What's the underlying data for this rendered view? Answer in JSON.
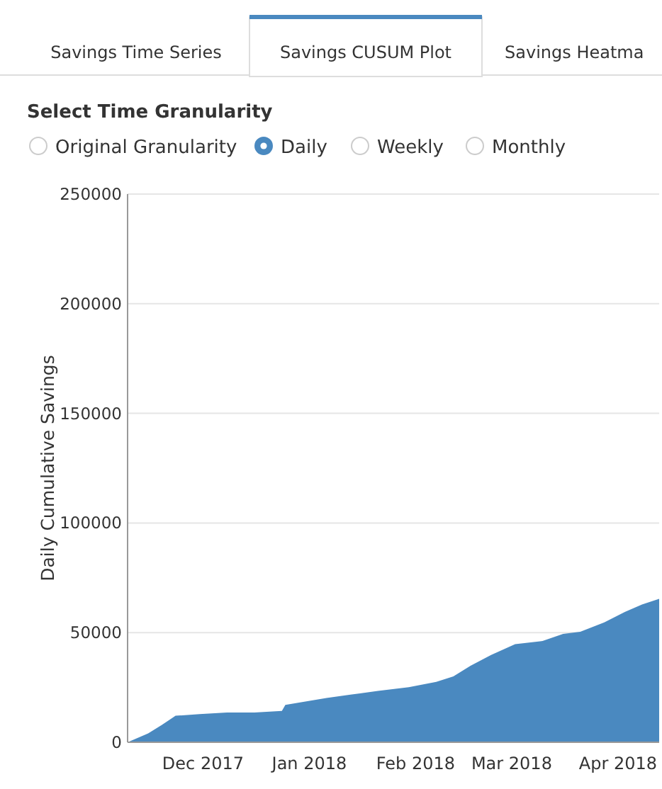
{
  "chart_data": {
    "type": "area",
    "title": "Select Time Granularity",
    "annotations": [
      "Savings Time Series",
      "Savings CUSUM Plot",
      "Savings Heatma",
      "Original Granularity",
      "Daily",
      "Weekly",
      "Monthly"
    ],
    "ylabel": "Daily Cumulative Savings",
    "color": "#4a89c0",
    "grid": "y",
    "x": [
      "2017-11-09",
      "2017-11-15",
      "2017-11-19",
      "2017-11-23",
      "2017-11-30",
      "2017-12-08",
      "2017-12-16",
      "2017-12-24",
      "2017-12-25",
      "2018-01-06",
      "2018-01-13",
      "2018-01-21",
      "2018-01-30",
      "2018-02-07",
      "2018-02-12",
      "2018-02-17",
      "2018-02-23",
      "2018-03-02",
      "2018-03-10",
      "2018-03-16",
      "2018-03-21",
      "2018-03-28",
      "2018-04-03",
      "2018-04-08",
      "2018-04-13"
    ],
    "values": [
      0,
      4000,
      7900,
      12100,
      12800,
      13600,
      13600,
      14300,
      17000,
      20200,
      21700,
      23400,
      25100,
      27500,
      30000,
      34900,
      39800,
      44700,
      46200,
      49400,
      50400,
      54700,
      59400,
      62800,
      65400
    ],
    "xlim": [
      "2017-11-09",
      "2018-04-13"
    ],
    "xticks": [
      {
        "value": "2017-12-01",
        "label": "Dec 2017"
      },
      {
        "value": "2018-01-01",
        "label": "Jan 2018"
      },
      {
        "value": "2018-02-01",
        "label": "Feb 2018"
      },
      {
        "value": "2018-03-01",
        "label": "Mar 2018"
      },
      {
        "value": "2018-04-01",
        "label": "Apr 2018"
      }
    ],
    "ylim": [
      0,
      250000
    ],
    "yticks": [
      0,
      50000,
      100000,
      150000,
      200000,
      250000
    ]
  }
}
